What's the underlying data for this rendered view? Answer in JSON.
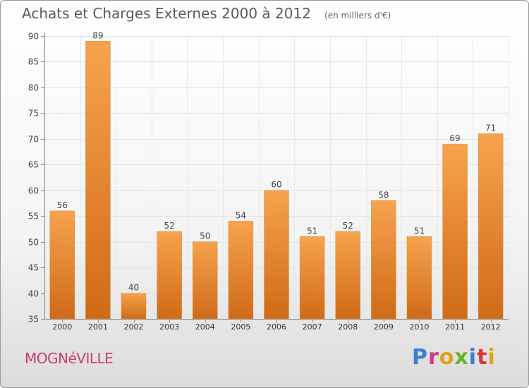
{
  "header": {
    "title": "Achats et Charges Externes 2000 à 2012",
    "unit": "(en milliers d'€)"
  },
  "footer": {
    "town": "MOGNéVILLE",
    "brand": "Proxiti",
    "brand_colors": [
      "#3a7fd0",
      "#d03a8a",
      "#e2a020",
      "#6ab02e",
      "#3a7fd0",
      "#d03a3a",
      "#e2a020"
    ]
  },
  "chart_data": {
    "type": "bar",
    "title": "Achats et Charges Externes 2000 à 2012",
    "categories": [
      "2000",
      "2001",
      "2002",
      "2003",
      "2004",
      "2005",
      "2006",
      "2007",
      "2008",
      "2009",
      "2010",
      "2011",
      "2012"
    ],
    "values": [
      56,
      89,
      40,
      52,
      50,
      54,
      60,
      51,
      52,
      58,
      51,
      69,
      71
    ],
    "ylim": [
      35,
      90
    ],
    "yticks": [
      35,
      40,
      45,
      50,
      55,
      60,
      65,
      70,
      75,
      80,
      85,
      90
    ],
    "grid": true,
    "bar_color_top": "#f7a34e",
    "bar_color_bottom": "#cf6a18",
    "xlabel": "",
    "ylabel": ""
  }
}
